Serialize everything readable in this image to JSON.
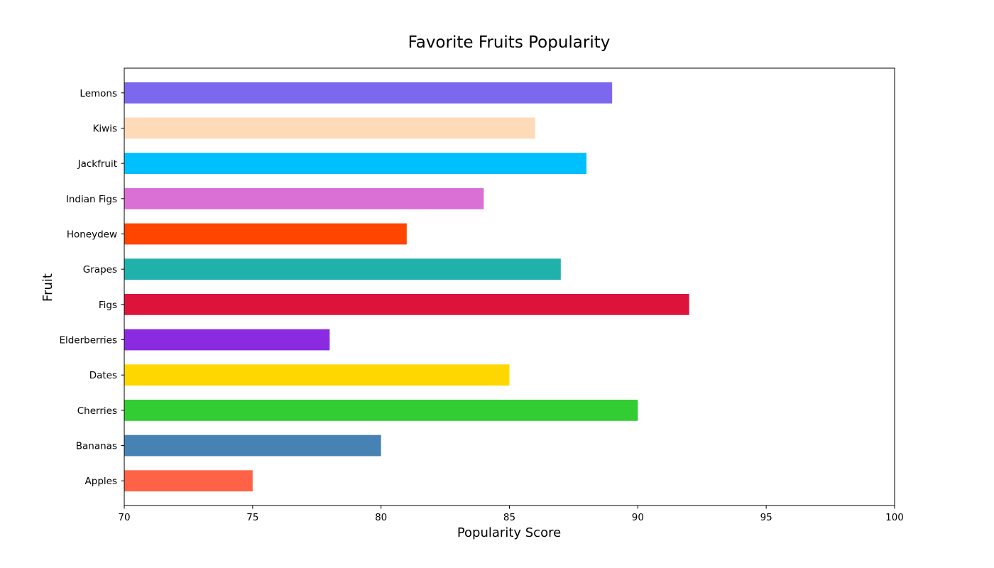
{
  "chart_data": {
    "type": "bar",
    "orientation": "horizontal",
    "title": "Favorite Fruits Popularity",
    "xlabel": "Popularity Score",
    "ylabel": "Fruit",
    "xlim": [
      70,
      100
    ],
    "xticks": [
      70,
      75,
      80,
      85,
      90,
      95,
      100
    ],
    "grid": false,
    "legend": "none",
    "categories": [
      "Apples",
      "Bananas",
      "Cherries",
      "Dates",
      "Elderberries",
      "Figs",
      "Grapes",
      "Honeydew",
      "Indian Figs",
      "Jackfruit",
      "Kiwis",
      "Lemons"
    ],
    "values": [
      75,
      80,
      90,
      85,
      78,
      92,
      87,
      81,
      84,
      88,
      86,
      89
    ],
    "colors": [
      "#FF6347",
      "#4682B4",
      "#32CD32",
      "#FFD700",
      "#8A2BE2",
      "#DC143C",
      "#20B2AA",
      "#FF4500",
      "#DA70D6",
      "#00BFFF",
      "#FFDAB9",
      "#7B68EE"
    ]
  }
}
